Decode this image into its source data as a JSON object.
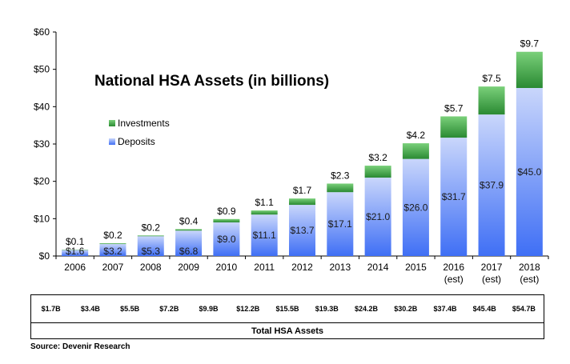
{
  "chart_data": {
    "type": "bar",
    "stacked": true,
    "title": "National HSA Assets (in billions)",
    "categories": [
      "2006",
      "2007",
      "2008",
      "2009",
      "2010",
      "2011",
      "2012",
      "2013",
      "2014",
      "2015",
      "2016",
      "2017",
      "2018"
    ],
    "category_sublabels": [
      "",
      "",
      "",
      "",
      "",
      "",
      "",
      "",
      "",
      "",
      "(est)",
      "(est)",
      "(est)"
    ],
    "series": [
      {
        "name": "Deposits",
        "values": [
          1.6,
          3.2,
          5.3,
          6.8,
          9.0,
          11.1,
          13.7,
          17.1,
          21.0,
          26.0,
          31.7,
          37.9,
          45.0
        ],
        "labels": [
          "$1.6",
          "$3.2",
          "$5.3",
          "$6.8",
          "$9.0",
          "$11.1",
          "$13.7",
          "$17.1",
          "$21.0",
          "$26.0",
          "$31.7",
          "$37.9",
          "$45.0"
        ]
      },
      {
        "name": "Investments",
        "values": [
          0.1,
          0.2,
          0.2,
          0.4,
          0.9,
          1.1,
          1.7,
          2.3,
          3.2,
          4.2,
          5.7,
          7.5,
          9.7
        ],
        "labels": [
          "$0.1",
          "$0.2",
          "$0.2",
          "$0.4",
          "$0.9",
          "$1.1",
          "$1.7",
          "$2.3",
          "$3.2",
          "$4.2",
          "$5.7",
          "$7.5",
          "$9.7"
        ]
      }
    ],
    "ylim": [
      0,
      60
    ],
    "yticks": [
      0,
      10,
      20,
      30,
      40,
      50,
      60
    ],
    "ytick_labels": [
      "$0",
      "$10",
      "$20",
      "$30",
      "$40",
      "$50",
      "$60"
    ],
    "grid": false,
    "legend_position": "left",
    "colors": {
      "deposits_top": "#c9d6fb",
      "deposits_bottom": "#3f6ff5",
      "investments_top": "#7ad07a",
      "investments_bottom": "#2a8a33"
    }
  },
  "totals": {
    "label": "Total HSA Assets",
    "values": [
      "$1.7B",
      "$3.4B",
      "$5.5B",
      "$7.2B",
      "$9.9B",
      "$12.2B",
      "$15.5B",
      "$19.3B",
      "$24.2B",
      "$30.2B",
      "$37.4B",
      "$45.4B",
      "$54.7B"
    ]
  },
  "source": "Source: Devenir Research"
}
